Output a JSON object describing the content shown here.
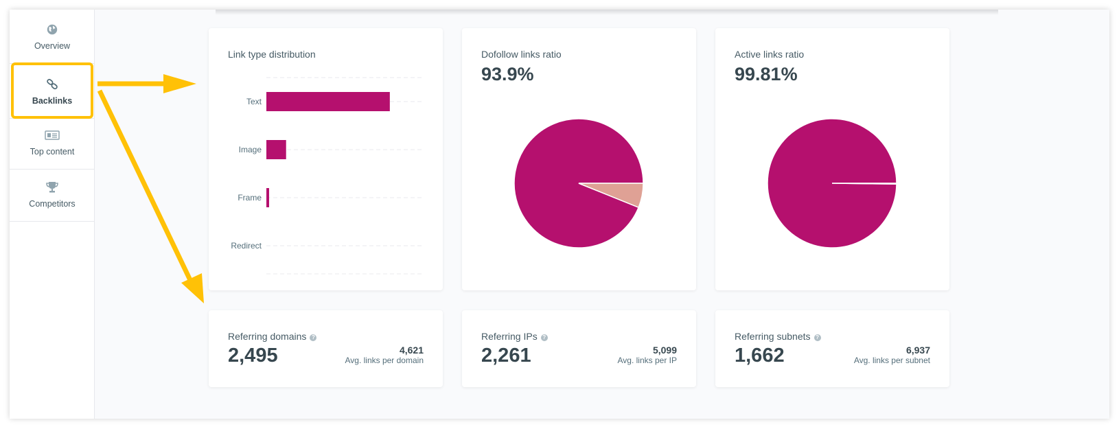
{
  "sidebar": {
    "items": [
      {
        "label": "Overview",
        "icon": "globe-icon"
      },
      {
        "label": "Backlinks",
        "icon": "link-icon",
        "active": true
      },
      {
        "label": "Top content",
        "icon": "newspaper-icon"
      },
      {
        "label": "Competitors",
        "icon": "trophy-icon"
      }
    ]
  },
  "colors": {
    "primary": "#b5106e",
    "secondary": "#dfa195",
    "highlight": "#ffc107",
    "text": "#37474f"
  },
  "link_types": {
    "title": "Link type distribution",
    "chart_data": {
      "type": "bar",
      "orientation": "horizontal",
      "categories": [
        "Text",
        "Image",
        "Frame",
        "Redirect"
      ],
      "values": [
        93.9,
        15,
        2,
        0
      ],
      "value_unit": "percent of links (estimated)",
      "grid": true
    }
  },
  "dofollow": {
    "title": "Dofollow links ratio",
    "value": "93.9%",
    "chart_data": {
      "type": "pie",
      "values": [
        93.9,
        6.1
      ],
      "colors": [
        "#b5106e",
        "#dfa195"
      ]
    }
  },
  "active": {
    "title": "Active links ratio",
    "value": "99.81%",
    "chart_data": {
      "type": "pie",
      "values": [
        99.81,
        0.19
      ],
      "colors": [
        "#b5106e",
        "#dfa195"
      ]
    }
  },
  "stats": [
    {
      "title": "Referring domains",
      "value": "2,495",
      "sub_value": "4,621",
      "sub_label": "Avg. links per domain"
    },
    {
      "title": "Referring IPs",
      "value": "2,261",
      "sub_value": "5,099",
      "sub_label": "Avg. links per IP"
    },
    {
      "title": "Referring subnets",
      "value": "1,662",
      "sub_value": "6,937",
      "sub_label": "Avg. links per subnet"
    }
  ]
}
